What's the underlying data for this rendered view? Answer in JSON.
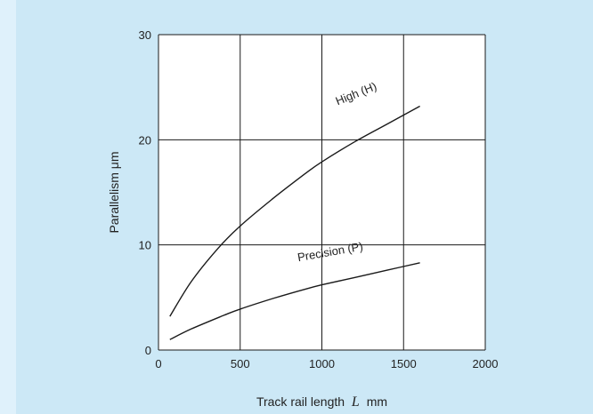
{
  "chart_data": {
    "type": "line",
    "xlabel": "Track rail length",
    "xlabel_var": "L",
    "xlabel_unit": "mm",
    "ylabel": "Parallelism μm",
    "xlim": [
      0,
      2000
    ],
    "ylim": [
      0,
      30
    ],
    "x_ticks": [
      0,
      500,
      1000,
      1500,
      2000
    ],
    "y_ticks": [
      0,
      10,
      20,
      30
    ],
    "grid": true,
    "series": [
      {
        "name": "High (H)",
        "x": [
          70,
          200,
          360,
          500,
          700,
          900,
          1000,
          1200,
          1400,
          1600
        ],
        "y": [
          3.2,
          6.5,
          9.6,
          11.8,
          14.4,
          16.8,
          17.9,
          19.8,
          21.5,
          23.2
        ]
      },
      {
        "name": "Precision (P)",
        "x": [
          70,
          200,
          400,
          500,
          700,
          900,
          1000,
          1200,
          1400,
          1600
        ],
        "y": [
          1.0,
          2.0,
          3.3,
          3.9,
          4.9,
          5.8,
          6.2,
          6.9,
          7.6,
          8.3
        ]
      }
    ]
  }
}
